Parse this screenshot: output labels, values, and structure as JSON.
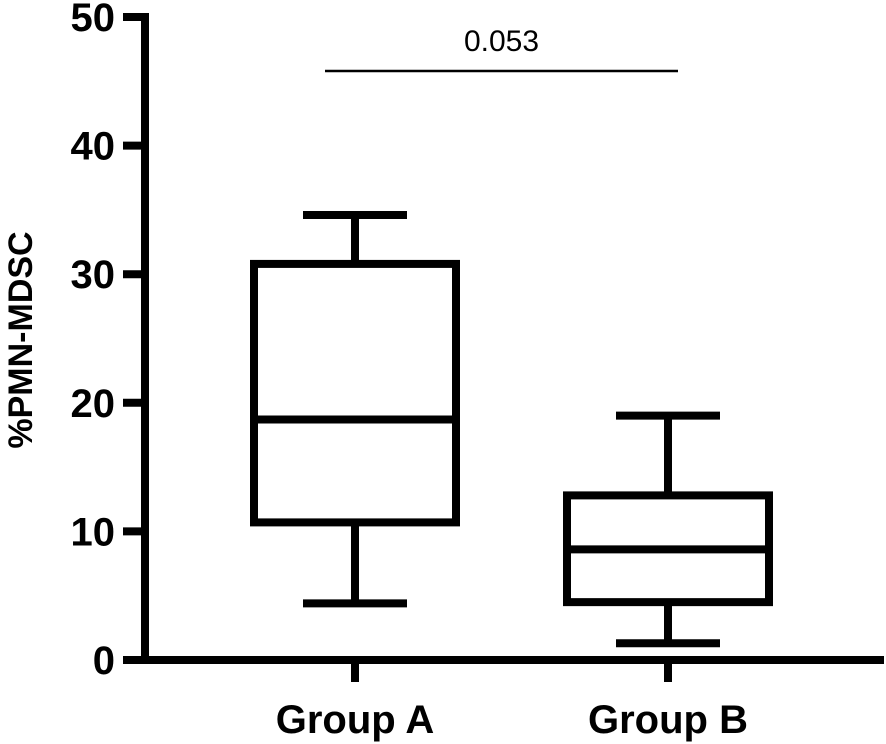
{
  "chart_data": {
    "type": "boxplot",
    "ylabel": "%PMN-MDSC",
    "xlabel": "",
    "ylim": [
      0,
      50
    ],
    "yticks": [
      0,
      10,
      20,
      30,
      40,
      50
    ],
    "categories": [
      "Group A",
      "Group B"
    ],
    "boxes": [
      {
        "category": "Group A",
        "min": 4.4,
        "q1": 10.7,
        "median": 18.7,
        "q3": 30.8,
        "max": 34.6
      },
      {
        "category": "Group B",
        "min": 1.3,
        "q1": 4.5,
        "median": 8.6,
        "q3": 12.8,
        "max": 19.0
      }
    ],
    "annotations": [
      {
        "text": "0.053",
        "type": "significance-bracket",
        "from": "Group A",
        "to": "Group B",
        "y": 45.8
      }
    ],
    "grid": false,
    "colors": {
      "box": "#000000",
      "background": "#ffffff"
    }
  }
}
